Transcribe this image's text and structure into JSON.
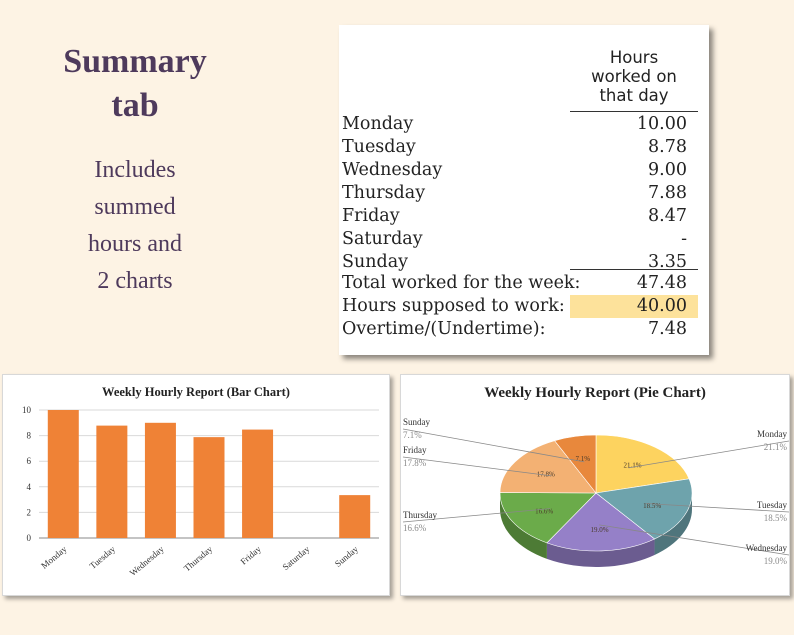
{
  "heading": {
    "line1": "Summary",
    "line2": "tab"
  },
  "description": {
    "line1": "Includes",
    "line2": "summed",
    "line3": "hours and",
    "line4": "2 charts"
  },
  "summary_table": {
    "header": {
      "line1": "Hours",
      "line2": "worked on",
      "line3": "that day"
    },
    "rows": [
      {
        "label": "Monday",
        "value": "10.00"
      },
      {
        "label": "Tuesday",
        "value": "8.78"
      },
      {
        "label": "Wednesday",
        "value": "9.00"
      },
      {
        "label": "Thursday",
        "value": "7.88"
      },
      {
        "label": "Friday",
        "value": "8.47"
      },
      {
        "label": "Saturday",
        "value": "-"
      },
      {
        "label": "Sunday",
        "value": "3.35"
      },
      {
        "label": "Total worked for the week:",
        "value": "47.48"
      },
      {
        "label": "Hours supposed to work:",
        "value": "40.00"
      },
      {
        "label": "Overtime/(Undertime):",
        "value": "7.48"
      }
    ],
    "highlight_color": "#fde29b"
  },
  "chart_data": [
    {
      "type": "bar",
      "title": "Weekly Hourly Report (Bar Chart)",
      "categories": [
        "Monday",
        "Tuesday",
        "Wednesday",
        "Thursday",
        "Friday",
        "Saturday",
        "Sunday"
      ],
      "values": [
        10.0,
        8.78,
        9.0,
        7.88,
        8.47,
        0,
        3.35
      ],
      "ylim": [
        0,
        10
      ],
      "yticks": [
        "0",
        "2",
        "4",
        "6",
        "8",
        "10"
      ],
      "grid": true,
      "color": "#ef8236"
    },
    {
      "type": "pie",
      "title": "Weekly Hourly Report (Pie Chart)",
      "slices": [
        {
          "label": "Monday",
          "percent": "21.1%",
          "value": 21.1,
          "color": "#fdd35f"
        },
        {
          "label": "Tuesday",
          "percent": "18.5%",
          "value": 18.5,
          "color": "#6ea3ac"
        },
        {
          "label": "Wednesday",
          "percent": "19.0%",
          "value": 19.0,
          "color": "#9580c8"
        },
        {
          "label": "Thursday",
          "percent": "16.6%",
          "value": 16.6,
          "color": "#6bab4a"
        },
        {
          "label": "Friday",
          "percent": "17.8%",
          "value": 17.8,
          "color": "#f3b173"
        },
        {
          "label": "Sunday",
          "percent": "7.1%",
          "value": 7.1,
          "color": "#e8883c"
        }
      ]
    }
  ]
}
